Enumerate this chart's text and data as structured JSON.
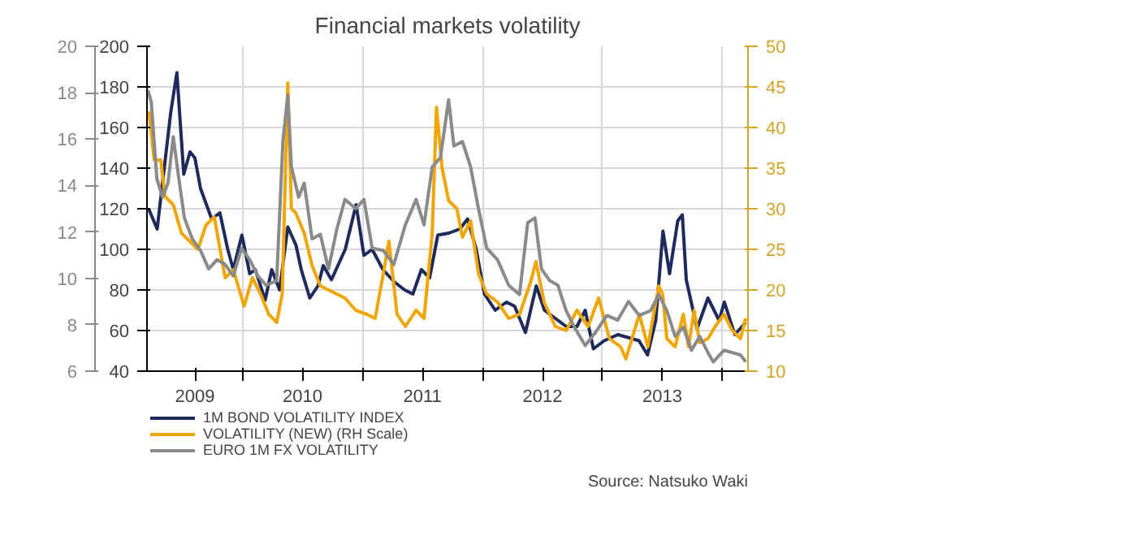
{
  "chart_data": {
    "type": "line",
    "title": "Financial markets volatility",
    "annotations": [
      "Source: Natsuko Waki"
    ],
    "xlim": [
      "2009-03-15",
      "2014-03-20"
    ],
    "xticks": [
      {
        "value": "2009-08-08",
        "label": "2009"
      },
      {
        "value": "2010-01-01",
        "label": null
      },
      {
        "value": "2010-07-02",
        "label": "2010"
      },
      {
        "value": "2011-01-01",
        "label": null
      },
      {
        "value": "2011-07-02",
        "label": "2011"
      },
      {
        "value": "2012-01-01",
        "label": null
      },
      {
        "value": "2012-07-02",
        "label": "2012"
      },
      {
        "value": "2013-01-01",
        "label": null
      },
      {
        "value": "2013-07-02",
        "label": "2013"
      },
      {
        "value": "2014-01-01",
        "label": null
      }
    ],
    "ylim": [
      40,
      200
    ],
    "yticks": [
      40,
      60,
      80,
      100,
      120,
      140,
      160,
      180,
      200
    ],
    "y2lim": [
      10,
      50
    ],
    "y2ticks": [
      10,
      15,
      20,
      25,
      30,
      35,
      40,
      45,
      50
    ],
    "y3lim": [
      6,
      20
    ],
    "y3ticks": [
      6,
      8,
      10,
      12,
      14,
      16,
      18,
      20
    ],
    "grid": true,
    "legend": "bottom",
    "line_style": "solid",
    "marker": "none",
    "series": [
      {
        "name": "1M BOND VOLATILITY INDEX",
        "color": "#1f2a5c",
        "x": [
          "2009-03-20",
          "2009-04-15",
          "2009-05-26",
          "2009-06-14",
          "2009-07-05",
          "2009-07-24",
          "2009-08-08",
          "2009-08-25",
          "2009-09-28",
          "2009-10-23",
          "2009-11-16",
          "2009-12-03",
          "2009-12-29",
          "2010-01-22",
          "2010-02-08",
          "2010-03-10",
          "2010-03-30",
          "2010-04-23",
          "2010-05-18",
          "2010-06-12",
          "2010-06-28",
          "2010-07-24",
          "2010-08-18",
          "2010-09-03",
          "2010-09-28",
          "2010-11-09",
          "2010-12-12",
          "2011-01-05",
          "2011-01-30",
          "2011-03-04",
          "2011-04-07",
          "2011-05-09",
          "2011-06-03",
          "2011-06-29",
          "2011-07-24",
          "2011-08-18",
          "2011-09-21",
          "2011-10-24",
          "2011-11-17",
          "2011-12-13",
          "2012-01-07",
          "2012-02-09",
          "2012-03-14",
          "2012-04-08",
          "2012-05-11",
          "2012-06-13",
          "2012-07-08",
          "2012-08-10",
          "2012-09-12",
          "2012-10-15",
          "2012-11-09",
          "2012-12-04",
          "2013-01-06",
          "2013-02-17",
          "2013-04-22",
          "2013-05-18",
          "2013-06-12",
          "2013-07-04",
          "2013-07-24",
          "2013-08-18",
          "2013-09-01",
          "2013-09-13",
          "2013-10-16",
          "2013-11-18",
          "2013-12-22",
          "2014-01-07",
          "2014-02-08",
          "2014-03-13"
        ],
        "values": [
          120,
          110,
          167,
          187,
          137,
          148,
          145,
          130,
          115,
          118,
          100,
          90,
          107,
          88,
          90,
          75,
          90,
          80,
          111,
          102,
          90,
          76,
          82,
          92,
          85,
          100,
          122,
          97,
          100,
          90,
          84,
          80,
          78,
          90,
          86,
          107,
          108,
          110,
          115,
          100,
          78,
          70,
          74,
          72,
          59,
          82,
          70,
          66,
          62,
          62,
          70,
          51,
          55,
          58,
          55,
          48,
          65,
          109,
          88,
          114,
          117,
          85,
          61,
          76,
          65,
          74,
          58,
          64
        ]
      },
      {
        "name": "VOLATILITY (NEW) (RH Scale)",
        "color": "#f0a500",
        "axis": "y2",
        "x": [
          "2009-03-21",
          "2009-04-06",
          "2009-04-26",
          "2009-05-09",
          "2009-06-03",
          "2009-06-28",
          "2009-07-23",
          "2009-08-17",
          "2009-09-11",
          "2009-10-06",
          "2009-11-08",
          "2009-12-03",
          "2010-01-05",
          "2010-01-30",
          "2010-02-24",
          "2010-03-21",
          "2010-04-14",
          "2010-05-01",
          "2010-05-18",
          "2010-05-29",
          "2010-06-11",
          "2010-07-07",
          "2010-07-31",
          "2010-08-25",
          "2010-09-19",
          "2010-11-08",
          "2010-12-11",
          "2011-01-14",
          "2011-02-08",
          "2011-03-05",
          "2011-03-22",
          "2011-04-16",
          "2011-05-11",
          "2011-06-13",
          "2011-07-07",
          "2011-08-01",
          "2011-08-14",
          "2011-08-31",
          "2011-09-20",
          "2011-10-15",
          "2011-11-01",
          "2011-11-26",
          "2011-12-20",
          "2012-01-14",
          "2012-02-16",
          "2012-03-21",
          "2012-04-23",
          "2012-05-27",
          "2012-06-12",
          "2012-07-07",
          "2012-08-10",
          "2012-09-12",
          "2012-10-15",
          "2012-11-18",
          "2012-12-20",
          "2013-01-22",
          "2013-02-25",
          "2013-03-13",
          "2013-04-23",
          "2013-05-19",
          "2013-06-21",
          "2013-07-03",
          "2013-07-16",
          "2013-08-10",
          "2013-09-04",
          "2013-09-20",
          "2013-10-07",
          "2013-10-24",
          "2013-11-18",
          "2013-12-10",
          "2014-01-06",
          "2014-01-31",
          "2014-02-25",
          "2014-03-13"
        ],
        "values": [
          42,
          36,
          36,
          31.5,
          30.5,
          27,
          26,
          25,
          28,
          29,
          21.5,
          22.5,
          18,
          21.5,
          19.5,
          17,
          16,
          19.5,
          45.5,
          30,
          29.5,
          27,
          23,
          20.5,
          20,
          19,
          17.5,
          17,
          16.5,
          22,
          26,
          17,
          15.5,
          17.5,
          16.5,
          27,
          42.5,
          35,
          31,
          30,
          26.5,
          28.5,
          22,
          19.5,
          18.5,
          16.5,
          17,
          21,
          23.5,
          18.5,
          15.5,
          15,
          17.5,
          15.5,
          19,
          14,
          13,
          11.5,
          17,
          13,
          20.5,
          19.5,
          14,
          13,
          17,
          13,
          17.5,
          13.5,
          14,
          15.5,
          17,
          15,
          14,
          16.5
        ]
      },
      {
        "name": "EURO 1M FX VOLATILITY",
        "color": "#8a8a8a",
        "axis": "y3",
        "x": [
          "2009-03-18",
          "2009-03-28",
          "2009-04-14",
          "2009-05-01",
          "2009-05-18",
          "2009-06-03",
          "2009-06-20",
          "2009-07-07",
          "2009-07-31",
          "2009-08-25",
          "2009-09-19",
          "2009-10-14",
          "2009-11-08",
          "2009-12-03",
          "2009-12-28",
          "2010-01-22",
          "2010-02-16",
          "2010-03-13",
          "2010-04-14",
          "2010-05-03",
          "2010-05-18",
          "2010-05-29",
          "2010-06-20",
          "2010-07-07",
          "2010-07-31",
          "2010-08-25",
          "2010-09-19",
          "2010-10-14",
          "2010-11-08",
          "2010-12-11",
          "2011-01-05",
          "2011-01-30",
          "2011-03-05",
          "2011-04-06",
          "2011-05-11",
          "2011-06-13",
          "2011-07-07",
          "2011-08-01",
          "2011-08-26",
          "2011-09-20",
          "2011-10-06",
          "2011-11-01",
          "2011-11-26",
          "2011-12-20",
          "2012-01-14",
          "2012-02-16",
          "2012-03-21",
          "2012-04-23",
          "2012-05-18",
          "2012-06-09",
          "2012-06-29",
          "2012-07-24",
          "2012-08-18",
          "2012-09-12",
          "2012-10-07",
          "2012-11-09",
          "2012-12-12",
          "2013-01-14",
          "2013-02-16",
          "2013-03-21",
          "2013-04-23",
          "2013-05-27",
          "2013-06-21",
          "2013-07-16",
          "2013-08-10",
          "2013-09-04",
          "2013-09-29",
          "2013-10-24",
          "2013-11-18",
          "2013-12-04",
          "2014-01-06",
          "2014-01-31",
          "2014-02-25",
          "2014-03-13"
        ],
        "values": [
          18.1,
          17.6,
          14.3,
          13.5,
          14.1,
          16.1,
          14.3,
          12.6,
          11.7,
          11.2,
          10.4,
          10.8,
          10.6,
          10.1,
          11.3,
          10.8,
          10.1,
          9.7,
          9.9,
          15.9,
          17.9,
          14.8,
          13.5,
          14.1,
          11.7,
          11.9,
          10.4,
          12.1,
          13.4,
          13,
          13.4,
          11.3,
          11.2,
          10.6,
          12.3,
          13.4,
          12.3,
          14.8,
          15.2,
          17.7,
          15.7,
          15.9,
          14.8,
          13,
          11.3,
          10.8,
          9.7,
          9.3,
          12.4,
          12.6,
          10.4,
          9.9,
          9.7,
          8.6,
          7.9,
          7.1,
          7.7,
          8.4,
          8.2,
          9,
          8.4,
          8.6,
          9.3,
          8.6,
          7.5,
          7.9,
          6.9,
          7.5,
          6.8,
          6.4,
          6.9,
          6.8,
          6.7,
          6.4
        ]
      }
    ]
  }
}
